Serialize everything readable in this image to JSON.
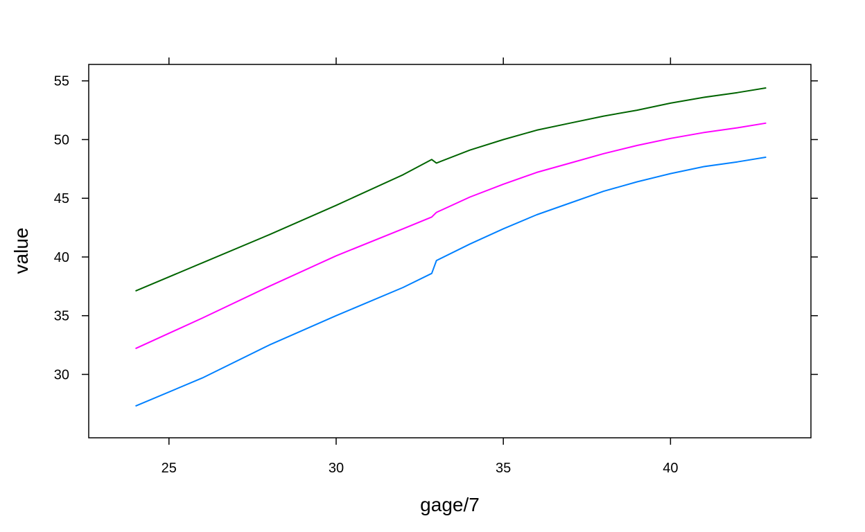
{
  "chart_data": {
    "type": "line",
    "title": "",
    "xlabel": "gage/7",
    "ylabel": "value",
    "xlim": [
      22.6,
      44.2
    ],
    "ylim": [
      24.6,
      56.4
    ],
    "xticks": [
      25,
      30,
      35,
      40
    ],
    "yticks": [
      30,
      35,
      40,
      45,
      50,
      55
    ],
    "grid": false,
    "legend": "none",
    "series": [
      {
        "color": "#006400",
        "points": [
          [
            24,
            37.1
          ],
          [
            26,
            39.5
          ],
          [
            28,
            41.9
          ],
          [
            30,
            44.4
          ],
          [
            32,
            47.0
          ],
          [
            32.86,
            48.3
          ],
          [
            33.0,
            48.0
          ],
          [
            34,
            49.1
          ],
          [
            35,
            50.0
          ],
          [
            36,
            50.8
          ],
          [
            37,
            51.4
          ],
          [
            38,
            52.0
          ],
          [
            39,
            52.5
          ],
          [
            40,
            53.1
          ],
          [
            41,
            53.6
          ],
          [
            42,
            54.0
          ],
          [
            42.86,
            54.4
          ]
        ]
      },
      {
        "color": "#FF00FF",
        "points": [
          [
            24,
            32.2
          ],
          [
            26,
            34.8
          ],
          [
            28,
            37.5
          ],
          [
            30,
            40.1
          ],
          [
            32,
            42.4
          ],
          [
            32.86,
            43.4
          ],
          [
            33.0,
            43.8
          ],
          [
            34,
            45.1
          ],
          [
            35,
            46.2
          ],
          [
            36,
            47.2
          ],
          [
            37,
            48.0
          ],
          [
            38,
            48.8
          ],
          [
            39,
            49.5
          ],
          [
            40,
            50.1
          ],
          [
            41,
            50.6
          ],
          [
            42,
            51.0
          ],
          [
            42.86,
            51.4
          ]
        ]
      },
      {
        "color": "#0080FF",
        "points": [
          [
            24,
            27.3
          ],
          [
            26,
            29.7
          ],
          [
            28,
            32.5
          ],
          [
            30,
            35.0
          ],
          [
            32,
            37.4
          ],
          [
            32.86,
            38.6
          ],
          [
            33.0,
            39.7
          ],
          [
            34,
            41.1
          ],
          [
            35,
            42.4
          ],
          [
            36,
            43.6
          ],
          [
            37,
            44.6
          ],
          [
            38,
            45.6
          ],
          [
            39,
            46.4
          ],
          [
            40,
            47.1
          ],
          [
            41,
            47.7
          ],
          [
            42,
            48.1
          ],
          [
            42.86,
            48.5
          ]
        ]
      }
    ]
  }
}
